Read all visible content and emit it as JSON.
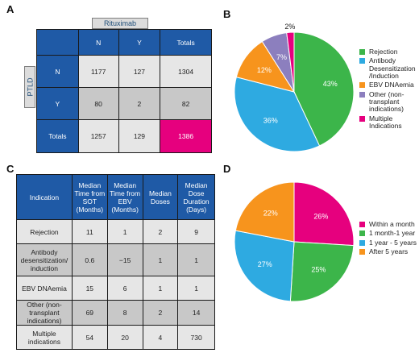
{
  "panels": {
    "a": "A",
    "b": "B",
    "c": "C",
    "d": "D"
  },
  "panel_a": {
    "col_group": "Rituximab",
    "row_group": "PTLD",
    "col_headers": [
      "N",
      "Y",
      "Totals"
    ],
    "rows": [
      {
        "label": "N",
        "cells": [
          "1177",
          "127",
          "1304"
        ]
      },
      {
        "label": "Y",
        "cells": [
          "80",
          "2",
          "82"
        ]
      },
      {
        "label": "Totals",
        "cells": [
          "1257",
          "129",
          "1386"
        ]
      }
    ]
  },
  "panel_c": {
    "headers": [
      "Indication",
      "Median Time from SOT (Months)",
      "Median Time from EBV (Months)",
      "Median Doses",
      "Median Dose Duration (Days)"
    ],
    "rows": [
      [
        "Rejection",
        "11",
        "1",
        "2",
        "9"
      ],
      [
        "Antibody desensitization/ induction",
        "0.6",
        "−15",
        "1",
        "1"
      ],
      [
        "EBV DNAemia",
        "15",
        "6",
        "1",
        "1"
      ],
      [
        "Other (non-transplant indications)",
        "69",
        "8",
        "2",
        "14"
      ],
      [
        "Multiple indications",
        "54",
        "20",
        "4",
        "730"
      ]
    ]
  },
  "chart_data": [
    {
      "type": "pie",
      "categories": [
        "Rejection",
        "Antibody Desensitization /Induction",
        "EBV DNAemia",
        "Other (non-transplant indications)",
        "Multiple Indications"
      ],
      "values": [
        43,
        36,
        12,
        7,
        2
      ],
      "labels": [
        "43%",
        "36%",
        "12%",
        "7%",
        "2%"
      ],
      "colors": [
        "#3cb54a",
        "#2eaae1",
        "#f7941d",
        "#8c7fbe",
        "#e6007e"
      ],
      "legend_position": "right"
    },
    {
      "type": "pie",
      "categories": [
        "Within a month",
        "1 month-1 year",
        "1 year - 5 years",
        "After 5 years"
      ],
      "values": [
        26,
        25,
        27,
        22
      ],
      "labels": [
        "26%",
        "25%",
        "27%",
        "22%"
      ],
      "colors": [
        "#e6007e",
        "#3cb54a",
        "#2eaae1",
        "#f7941d"
      ],
      "legend_position": "right"
    }
  ]
}
